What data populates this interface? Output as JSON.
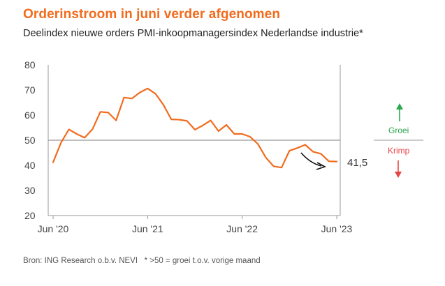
{
  "chart_data": {
    "type": "line",
    "title": "Orderinstroom in juni verder afgenomen",
    "subtitle": "Deelindex nieuwe orders PMI-inkoopmanagersindex Nederlandse industrie*",
    "ylim": [
      20,
      80
    ],
    "yticks": [
      "80",
      "70",
      "60",
      "50",
      "40",
      "30",
      "20"
    ],
    "xticks": [
      "Jun '20",
      "Jun '21",
      "Jun '22",
      "Jun '23"
    ],
    "reference_line": 50,
    "grid": false,
    "series": [
      {
        "color": "#f26b1d",
        "x": [
          "2020-06",
          "2020-07",
          "2020-08",
          "2020-09",
          "2020-10",
          "2020-11",
          "2020-12",
          "2021-01",
          "2021-02",
          "2021-03",
          "2021-04",
          "2021-05",
          "2021-06",
          "2021-07",
          "2021-08",
          "2021-09",
          "2021-10",
          "2021-11",
          "2021-12",
          "2022-01",
          "2022-02",
          "2022-03",
          "2022-04",
          "2022-05",
          "2022-06",
          "2022-07",
          "2022-08",
          "2022-09",
          "2022-10",
          "2022-11",
          "2022-12",
          "2023-01",
          "2023-02",
          "2023-03",
          "2023-04",
          "2023-05",
          "2023-06"
        ],
        "values": [
          41.2,
          49.0,
          54.3,
          52.5,
          51.0,
          54.4,
          61.3,
          61.0,
          57.9,
          67.0,
          66.6,
          69.0,
          70.6,
          68.5,
          64.1,
          58.3,
          58.2,
          57.7,
          54.2,
          55.9,
          57.9,
          53.6,
          56.1,
          52.5,
          52.5,
          51.4,
          48.5,
          43.1,
          39.6,
          39.1,
          45.8,
          46.9,
          48.2,
          45.4,
          44.6,
          41.6,
          41.5
        ]
      }
    ],
    "end_label": "41,5",
    "annotations": {
      "up": "Groei",
      "down": "Krimp"
    }
  },
  "source": "Bron: ING Research o.b.v. NEVI   * >50 = groei t.o.v. vorige maand",
  "colors": {
    "line": "#f26b1d",
    "axis": "#999999",
    "groei": "#2aa84a",
    "krimp": "#e64545",
    "arrow": "#111111"
  }
}
